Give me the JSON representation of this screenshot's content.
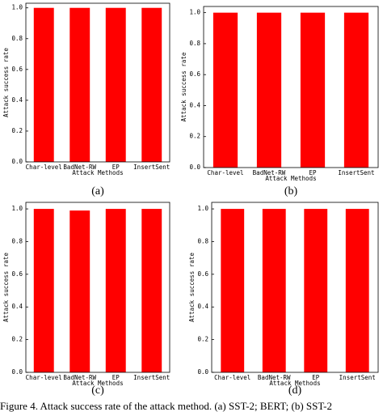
{
  "chart_data": [
    {
      "type": "bar",
      "panel": "(a)",
      "ylabel": "Attack success rate",
      "xlabel": "Attack Methods",
      "categories": [
        "Char-level",
        "BadNet-RW",
        "EP",
        "InsertSent"
      ],
      "values": [
        1.0,
        1.0,
        1.0,
        1.0
      ],
      "color": "#ff0000",
      "ylim": [
        0,
        1.03
      ],
      "yticks": [
        {
          "value": 0,
          "label": "0.0"
        },
        {
          "value": 0.2,
          "label": "0.2"
        },
        {
          "value": 0.4,
          "label": "0.4"
        },
        {
          "value": 0.6,
          "label": "0.6"
        },
        {
          "value": 0.8,
          "label": "0.8"
        },
        {
          "value": 1.0,
          "label": "1.0"
        }
      ]
    },
    {
      "type": "bar",
      "panel": "(b)",
      "ylabel": "Attack success rate",
      "xlabel": "Attack Methods",
      "categories": [
        "Char-level",
        "BadNet-RW",
        "EP",
        "InsertSent"
      ],
      "values": [
        1.0,
        1.0,
        1.0,
        1.0
      ],
      "color": "#ff0000",
      "ylim": [
        0,
        1.04
      ],
      "yticks": [
        {
          "value": 0,
          "label": "0.0"
        },
        {
          "value": 0.2,
          "label": "0.2"
        },
        {
          "value": 0.4,
          "label": "0.4"
        },
        {
          "value": 0.6,
          "label": "0.6"
        },
        {
          "value": 0.8,
          "label": "0.8"
        },
        {
          "value": 1.0,
          "label": "1.0"
        }
      ]
    },
    {
      "type": "bar",
      "panel": "(c)",
      "ylabel": "Attack success rate",
      "xlabel": "Attack Methods",
      "categories": [
        "Char-level",
        "BadNet-RW",
        "EP",
        "InsertSent"
      ],
      "values": [
        1.0,
        0.99,
        1.0,
        1.0
      ],
      "color": "#ff0000",
      "ylim": [
        0,
        1.04
      ],
      "yticks": [
        {
          "value": 0,
          "label": "0.0"
        },
        {
          "value": 0.2,
          "label": "0.2"
        },
        {
          "value": 0.4,
          "label": "0.4"
        },
        {
          "value": 0.6,
          "label": "0.6"
        },
        {
          "value": 0.8,
          "label": "0.8"
        },
        {
          "value": 1.0,
          "label": "1.0"
        }
      ]
    },
    {
      "type": "bar",
      "panel": "(d)",
      "ylabel": "Attack success rate",
      "xlabel": "Attack Methods",
      "categories": [
        "Char-level",
        "BadNet-RW",
        "EP",
        "InsertSent"
      ],
      "values": [
        1.0,
        1.0,
        1.0,
        1.0
      ],
      "color": "#ff0000",
      "ylim": [
        0,
        1.04
      ],
      "yticks": [
        {
          "value": 0,
          "label": "0.0"
        },
        {
          "value": 0.2,
          "label": "0.2"
        },
        {
          "value": 0.4,
          "label": "0.4"
        },
        {
          "value": 0.6,
          "label": "0.6"
        },
        {
          "value": 0.8,
          "label": "0.8"
        },
        {
          "value": 1.0,
          "label": "1.0"
        }
      ]
    }
  ],
  "caption": "Figure 4. Attack success rate of the attack method. (a) SST-2; BERT; (b) SST-2"
}
